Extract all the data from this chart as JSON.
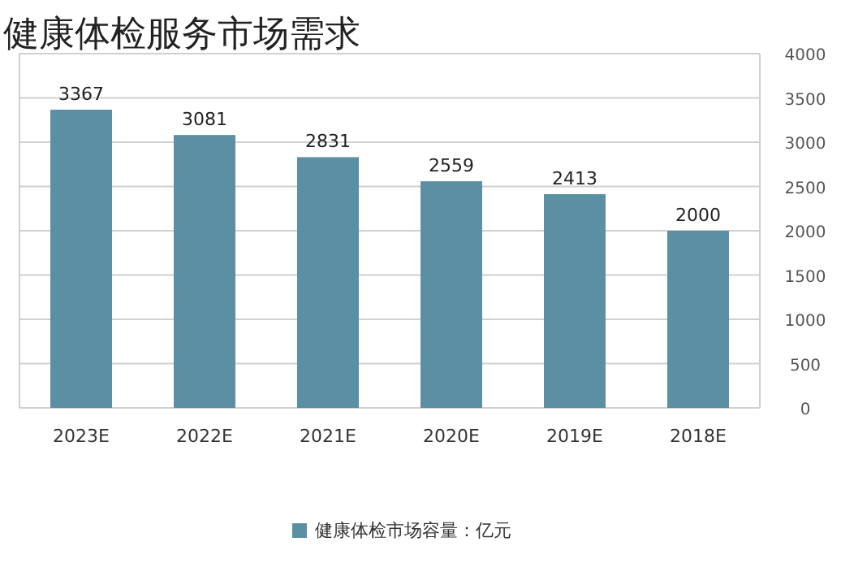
{
  "chart_data": {
    "type": "bar",
    "title": "健康体检服务市场需求",
    "categories": [
      "2023E",
      "2022E",
      "2021E",
      "2020E",
      "2019E",
      "2018E"
    ],
    "series": [
      {
        "name": "健康体检市场容量：亿元",
        "color": "#5b8fa3",
        "values": [
          3367,
          3081,
          2831,
          2559,
          2413,
          2000
        ]
      }
    ],
    "ylim": [
      0,
      4000
    ],
    "yticks": [
      0,
      500,
      1000,
      1500,
      2000,
      2500,
      3000,
      3500,
      4000
    ],
    "grid": "y",
    "legend": "bottom",
    "data_labels": true
  }
}
